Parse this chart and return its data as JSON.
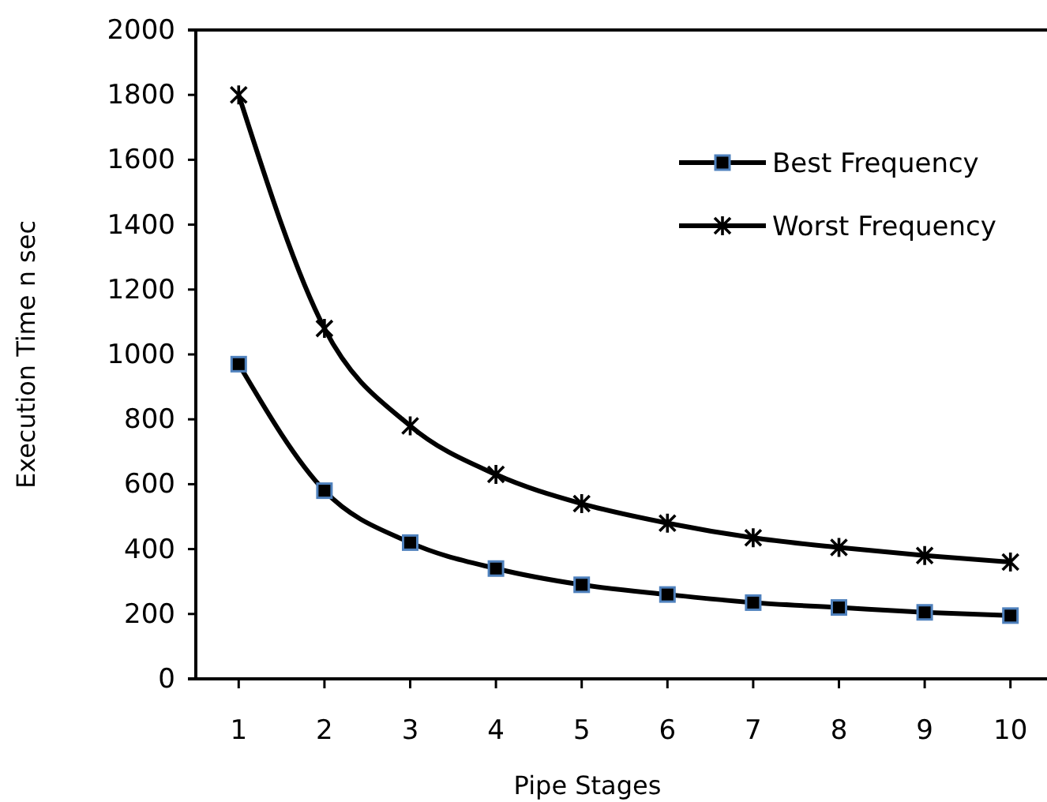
{
  "chart_data": {
    "type": "line",
    "xlabel": "Pipe Stages",
    "ylabel": "Execution Time n sec",
    "categories": [
      "1",
      "2",
      "3",
      "4",
      "5",
      "6",
      "7",
      "8",
      "9",
      "10"
    ],
    "series": [
      {
        "name": "Best Frequency",
        "color": "#000000",
        "marker": "square",
        "values": [
          970,
          580,
          420,
          340,
          290,
          260,
          235,
          220,
          205,
          195
        ]
      },
      {
        "name": "Worst Frequency",
        "color": "#000000",
        "marker": "cross",
        "values": [
          1800,
          1080,
          780,
          630,
          540,
          480,
          435,
          405,
          380,
          360
        ]
      }
    ],
    "ylim": [
      0,
      2000
    ],
    "yticks": [
      0,
      200,
      400,
      600,
      800,
      1000,
      1200,
      1400,
      1600,
      1800,
      2000
    ],
    "grid": false,
    "legend": "top right",
    "line_style": "solid"
  }
}
